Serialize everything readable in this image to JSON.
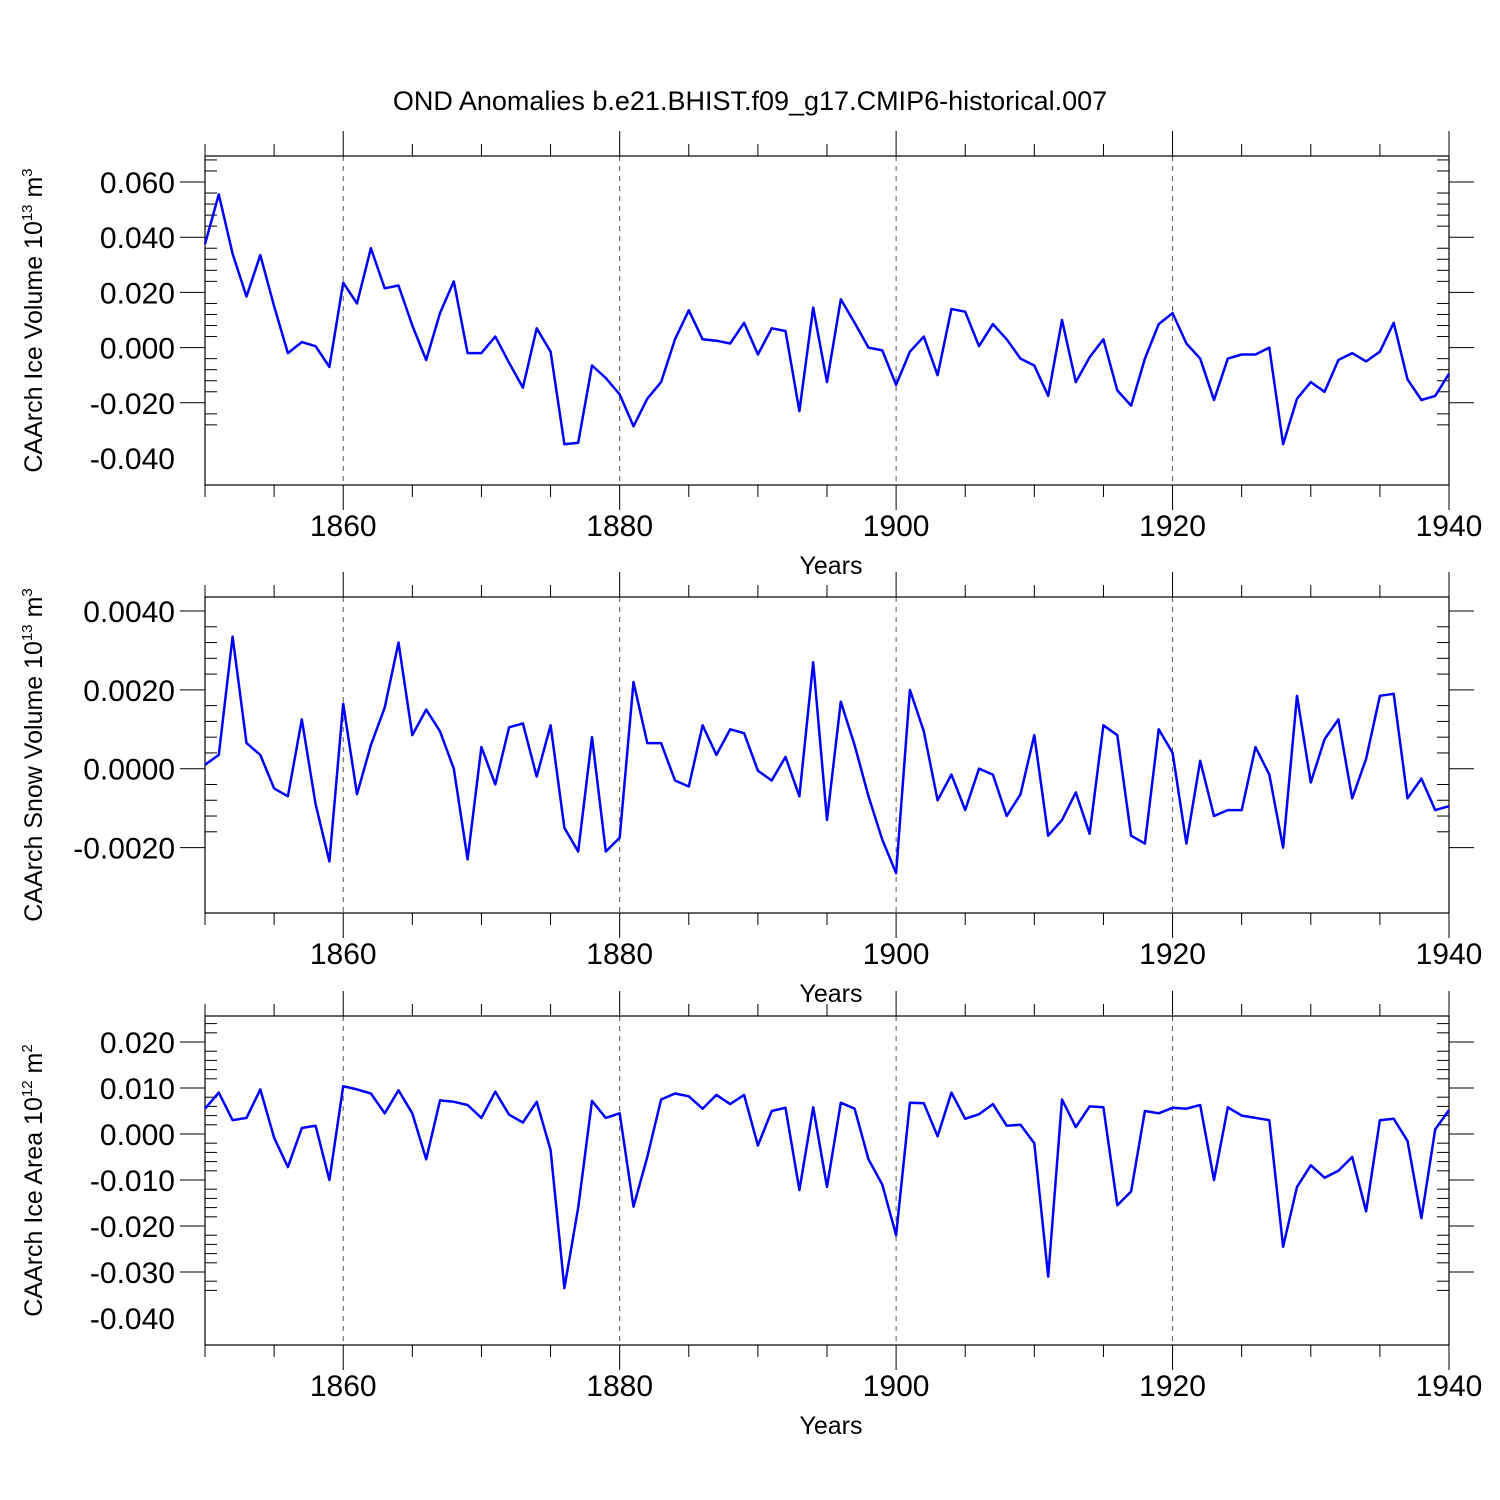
{
  "figure_title": "OND Anomalies b.e21.BHIST.f09_g17.CMIP6-historical.007",
  "colors": {
    "line": "#0000ff",
    "axes": "#000000",
    "grid": "#555555"
  },
  "chart_data": [
    {
      "type": "line",
      "ylabel": "CAArch Ice Volume 10",
      "ylabel_exponent": "13",
      "ylabel_unit": "m",
      "ylabel_unit_exponent": "3",
      "xlabel": "Years",
      "xlim": [
        1850,
        1940
      ],
      "ylim": [
        -0.04,
        0.06
      ],
      "xticks": [
        1860,
        1880,
        1900,
        1920,
        1940
      ],
      "xtick_labels": [
        "1860",
        "1880",
        "1900",
        "1920",
        "1940"
      ],
      "yticks": [
        -0.04,
        -0.02,
        0.0,
        0.02,
        0.04,
        0.06
      ],
      "ytick_labels": [
        "-0.040",
        "-0.020",
        "0.000",
        "0.020",
        "0.040",
        "0.060"
      ],
      "grid": "vertical dashed at major x ticks",
      "x_start": 1850,
      "values": [
        0.0375,
        0.0555,
        0.034,
        0.0185,
        0.0335,
        0.015,
        -0.002,
        0.002,
        0.0005,
        -0.007,
        0.0235,
        0.016,
        0.036,
        0.0215,
        0.0225,
        0.008,
        -0.0045,
        0.0125,
        0.024,
        -0.002,
        -0.002,
        0.004,
        -0.0055,
        -0.0145,
        0.007,
        -0.0015,
        -0.035,
        -0.0345,
        -0.0065,
        -0.011,
        -0.017,
        -0.0285,
        -0.0185,
        -0.0125,
        0.003,
        0.0135,
        0.003,
        0.0025,
        0.0015,
        0.009,
        -0.0025,
        0.007,
        0.006,
        -0.023,
        0.0145,
        -0.0125,
        0.0175,
        0.009,
        0.0,
        -0.001,
        -0.0135,
        -0.0015,
        0.004,
        -0.01,
        0.014,
        0.013,
        0.0005,
        0.0085,
        0.003,
        -0.004,
        -0.0065,
        -0.0175,
        0.01,
        -0.0125,
        -0.0035,
        0.003,
        -0.0155,
        -0.021,
        -0.004,
        0.0085,
        0.0125,
        0.0015,
        -0.004,
        -0.019,
        -0.004,
        -0.0025,
        -0.0025,
        0.0,
        -0.035,
        -0.0185,
        -0.0125,
        -0.016,
        -0.0045,
        -0.002,
        -0.005,
        -0.0015,
        0.009,
        -0.0115,
        -0.019,
        -0.0175,
        -0.0095
      ]
    },
    {
      "type": "line",
      "ylabel": "CAArch Snow Volume 10",
      "ylabel_exponent": "13",
      "ylabel_unit": "m",
      "ylabel_unit_exponent": "3",
      "xlabel": "Years",
      "xlim": [
        1850,
        1940
      ],
      "ylim": [
        -0.003,
        0.004
      ],
      "xticks": [
        1860,
        1880,
        1900,
        1920,
        1940
      ],
      "xtick_labels": [
        "1860",
        "1880",
        "1900",
        "1920",
        "1940"
      ],
      "yticks": [
        -0.002,
        0.0,
        0.002,
        0.004
      ],
      "ytick_labels": [
        "-0.0020",
        "0.0000",
        "0.0020",
        "0.0040"
      ],
      "grid": "vertical dashed at major x ticks",
      "x_start": 1850,
      "values": [
        0.0001,
        0.00035,
        0.00335,
        0.00065,
        0.00035,
        -0.0005,
        -0.0007,
        0.00125,
        -0.0009,
        -0.00235,
        0.00165,
        -0.00065,
        0.0006,
        0.00155,
        0.0032,
        0.00085,
        0.0015,
        0.00095,
        0.0,
        -0.0023,
        0.00055,
        -0.0004,
        0.00105,
        0.00115,
        -0.0002,
        0.0011,
        -0.0015,
        -0.0021,
        0.0008,
        -0.0021,
        -0.00175,
        0.0022,
        0.00065,
        0.00065,
        -0.0003,
        -0.00045,
        0.0011,
        0.00035,
        0.001,
        0.0009,
        -5e-05,
        -0.0003,
        0.0003,
        -0.0007,
        0.0027,
        -0.0013,
        0.0017,
        0.0006,
        -0.0007,
        -0.0018,
        -0.00265,
        0.002,
        0.00095,
        -0.0008,
        -0.00015,
        -0.00105,
        0.0,
        -0.00015,
        -0.0012,
        -0.00065,
        0.00085,
        -0.0017,
        -0.0013,
        -0.0006,
        -0.00165,
        0.0011,
        0.00085,
        -0.0017,
        -0.0019,
        0.001,
        0.0004,
        -0.0019,
        0.0002,
        -0.0012,
        -0.00105,
        -0.00105,
        0.00055,
        -0.00015,
        -0.002,
        0.00185,
        -0.00035,
        0.00075,
        0.00125,
        -0.00075,
        0.00025,
        0.00185,
        0.0019,
        -0.00075,
        -0.00025,
        -0.00105,
        -0.00095
      ]
    },
    {
      "type": "line",
      "ylabel": "CAArch Ice Area 10",
      "ylabel_exponent": "12",
      "ylabel_unit": "m",
      "ylabel_unit_exponent": "2",
      "xlabel": "Years",
      "xlim": [
        1850,
        1940
      ],
      "ylim": [
        -0.04,
        0.02
      ],
      "xticks": [
        1860,
        1880,
        1900,
        1920,
        1940
      ],
      "xtick_labels": [
        "1860",
        "1880",
        "1900",
        "1920",
        "1940"
      ],
      "yticks": [
        -0.04,
        -0.03,
        -0.02,
        -0.01,
        0.0,
        0.01,
        0.02
      ],
      "ytick_labels": [
        "-0.040",
        "-0.030",
        "-0.020",
        "-0.010",
        "0.000",
        "0.010",
        "0.020"
      ],
      "grid": "vertical dashed at major x ticks",
      "x_start": 1850,
      "values": [
        0.0055,
        0.009,
        0.003,
        0.0035,
        0.0097,
        -0.0008,
        -0.0072,
        0.0013,
        0.0018,
        -0.01,
        0.0104,
        0.0097,
        0.0088,
        0.0045,
        0.0095,
        0.0045,
        -0.0055,
        0.0073,
        0.007,
        0.0063,
        0.0035,
        0.0092,
        0.0042,
        0.0025,
        0.007,
        -0.0035,
        -0.0335,
        -0.016,
        0.0072,
        0.0035,
        0.0045,
        -0.0158,
        -0.005,
        0.0075,
        0.0088,
        0.0082,
        0.0055,
        0.0085,
        0.0065,
        0.0085,
        -0.0025,
        0.005,
        0.0057,
        -0.0122,
        0.0058,
        -0.0115,
        0.0068,
        0.0055,
        -0.0055,
        -0.011,
        -0.022,
        0.0068,
        0.0067,
        -0.0005,
        0.009,
        0.0033,
        0.0043,
        0.0065,
        0.0018,
        0.002,
        -0.002,
        -0.031,
        0.0075,
        0.0015,
        0.006,
        0.0058,
        -0.0155,
        -0.0125,
        0.005,
        0.0045,
        0.0057,
        0.0055,
        0.0063,
        -0.01,
        0.0058,
        0.004,
        0.0035,
        0.003,
        -0.0245,
        -0.0115,
        -0.0068,
        -0.0095,
        -0.008,
        -0.005,
        -0.0168,
        0.003,
        0.0033,
        -0.0015,
        -0.0183,
        0.001,
        0.0052
      ]
    }
  ]
}
